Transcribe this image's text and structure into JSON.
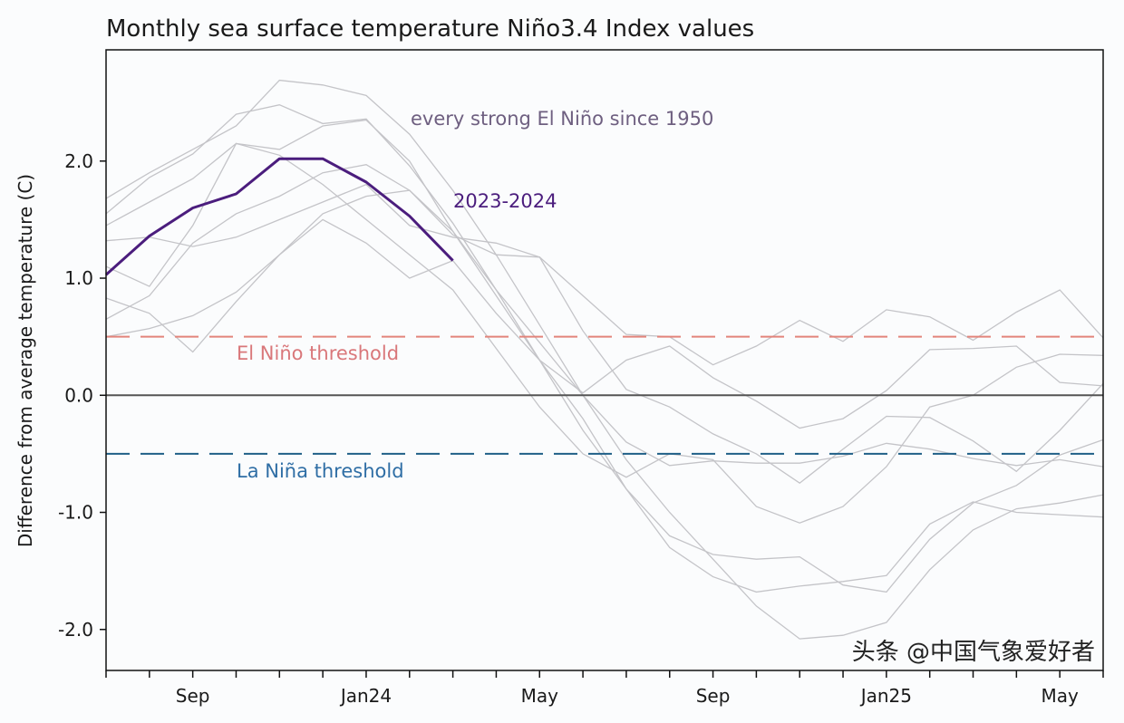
{
  "chart_data": {
    "type": "line",
    "title": "Monthly sea surface temperature Niño3.4 Index values",
    "ylabel": "Difference from average temperature (C)",
    "xlabel": "",
    "x": [
      "2023-07",
      "2023-08",
      "2023-09",
      "2023-10",
      "2023-11",
      "2023-12",
      "2024-01",
      "2024-02",
      "2024-03",
      "2024-04",
      "2024-05",
      "2024-06",
      "2024-07",
      "2024-08",
      "2024-09",
      "2024-10",
      "2024-11",
      "2024-12",
      "2025-01",
      "2025-02",
      "2025-03",
      "2025-04",
      "2025-05",
      "2025-06"
    ],
    "xtick_labels": [
      {
        "month": "2023-09",
        "label": "Sep"
      },
      {
        "month": "2024-01",
        "label": "Jan24"
      },
      {
        "month": "2024-05",
        "label": "May"
      },
      {
        "month": "2024-09",
        "label": "Sep"
      },
      {
        "month": "2025-01",
        "label": "Jan25"
      },
      {
        "month": "2025-05",
        "label": "May"
      }
    ],
    "yticks": [
      2.0,
      1.0,
      0.0,
      -1.0,
      -2.0
    ],
    "ytick_labels": [
      "2.0",
      "1.0",
      "0.0",
      "-1.0",
      "-2.0"
    ],
    "ylim": [
      -2.35,
      2.95
    ],
    "grid": false,
    "historical_label": "every strong El Niño since 1950",
    "historical_color": "#c4c4c8",
    "historical_series": [
      {
        "values": [
          1.68,
          1.9,
          2.1,
          2.3,
          2.69,
          2.65,
          2.56,
          2.23,
          1.75,
          1.2,
          0.6,
          0.0,
          -0.55,
          -1.0,
          -1.4,
          -1.8,
          -2.08,
          -2.05,
          -1.94,
          -1.49,
          -1.15,
          -0.97,
          -0.92,
          -0.85
        ]
      },
      {
        "values": [
          1.55,
          1.86,
          2.06,
          2.4,
          2.48,
          2.32,
          2.36,
          1.96,
          1.47,
          0.9,
          0.3,
          -0.3,
          -0.8,
          -1.2,
          -1.36,
          -1.4,
          -1.38,
          -1.62,
          -1.68,
          -1.23,
          -0.92,
          -0.77,
          -0.51,
          -0.38
        ]
      },
      {
        "values": [
          1.45,
          1.65,
          1.85,
          2.15,
          2.1,
          2.3,
          2.35,
          2.0,
          1.4,
          0.9,
          0.45,
          0.0,
          -0.4,
          -0.6,
          -0.56,
          -0.58,
          -0.58,
          -0.52,
          -0.41,
          -0.46,
          -0.54,
          -0.6,
          -0.55,
          -0.61
        ]
      },
      {
        "values": [
          0.65,
          0.85,
          1.3,
          1.55,
          1.7,
          1.9,
          1.97,
          1.75,
          1.37,
          1.2,
          1.18,
          0.85,
          0.52,
          0.5,
          0.26,
          0.42,
          0.64,
          0.46,
          0.73,
          0.67,
          0.47,
          0.71,
          0.9,
          0.49
        ]
      },
      {
        "values": [
          0.83,
          0.7,
          0.37,
          0.8,
          1.2,
          1.55,
          1.7,
          1.75,
          1.4,
          0.85,
          0.3,
          -0.2,
          -0.8,
          -1.3,
          -1.55,
          -1.68,
          -1.63,
          -1.59,
          -1.54,
          -1.1,
          -0.91,
          -1.0,
          -1.02,
          -1.04
        ]
      },
      {
        "values": [
          1.32,
          1.35,
          1.27,
          1.35,
          1.5,
          1.65,
          1.8,
          1.45,
          1.35,
          1.3,
          1.18,
          0.55,
          0.05,
          -0.1,
          -0.33,
          -0.5,
          -0.75,
          -0.46,
          -0.18,
          -0.19,
          -0.39,
          -0.65,
          -0.3,
          0.1
        ]
      },
      {
        "values": [
          0.5,
          0.57,
          0.68,
          0.88,
          1.2,
          1.5,
          1.3,
          1.0,
          1.15,
          0.7,
          0.3,
          0.02,
          0.3,
          0.42,
          0.15,
          -0.05,
          -0.28,
          -0.2,
          0.04,
          0.39,
          0.4,
          0.42,
          0.11,
          0.08
        ]
      },
      {
        "values": [
          1.1,
          0.93,
          1.45,
          2.15,
          2.05,
          1.8,
          1.5,
          1.2,
          0.9,
          0.4,
          -0.1,
          -0.5,
          -0.7,
          -0.5,
          -0.55,
          -0.95,
          -1.09,
          -0.95,
          -0.61,
          -0.1,
          0.0,
          0.24,
          0.35,
          0.34
        ]
      }
    ],
    "current_series": {
      "name": "2023-2024",
      "color": "#4b1d7d",
      "values": [
        1.03,
        1.36,
        1.6,
        1.72,
        2.02,
        2.02,
        1.82,
        1.53,
        1.15
      ]
    },
    "thresholds": [
      {
        "label": "El Niño threshold",
        "value": 0.5,
        "color": "#e3847b",
        "text_color": "#d9777a"
      },
      {
        "label": "La Niña threshold",
        "value": -0.5,
        "color": "#1f5f87",
        "text_color": "#2f6ea5"
      }
    ],
    "zero_line_color": "#555555"
  },
  "watermark": "头条 @中国气象爱好者"
}
